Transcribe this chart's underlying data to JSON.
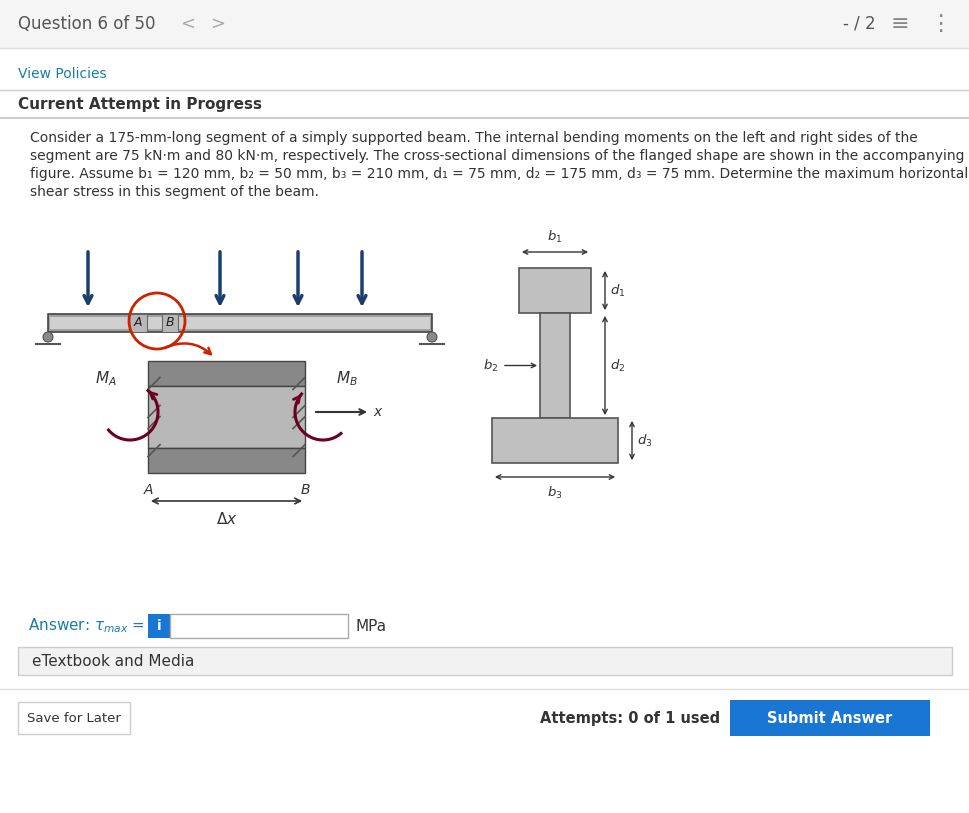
{
  "bg_color": "#f5f5f5",
  "white": "#ffffff",
  "blue_text": "#1a7da8",
  "dark_text": "#333333",
  "header_text": "Question 6 of 50",
  "view_policies": "View Policies",
  "attempt_text": "Current Attempt in Progress",
  "line1": "Consider a 175-mm-long segment of a simply supported beam. The internal bending moments on the left and right sides of the",
  "line2": "segment are 75 kN·m and 80 kN·m, respectively. The cross-sectional dimensions of the flanged shape are shown in the accompanying",
  "line3": "figure. Assume b₁ = 120 mm, b₂ = 50 mm, b₃ = 210 mm, d₁ = 75 mm, d₂ = 175 mm, d₃ = 75 mm. Determine the maximum horizontal",
  "line4": "shear stress in this segment of the beam.",
  "mpa_label": "MPa",
  "etextbook": "eTextbook and Media",
  "save_later": "Save for Later",
  "attempts_text": "Attempts: 0 of 1 used",
  "submit_text": "Submit Answer",
  "arrow_blue": "#1a3f6f",
  "beam_light": "#c8c8c8",
  "beam_mid": "#a0a0a0",
  "beam_dark": "#707070",
  "seg_dark": "#888888",
  "seg_light": "#cccccc",
  "red_color": "#cc2200",
  "moment_color": "#6b0020",
  "label_color": "#333333",
  "header_bg": "#f5f5f5",
  "content_bg": "#ffffff",
  "etb_bg": "#f2f2f2",
  "submit_blue": "#1976D2"
}
